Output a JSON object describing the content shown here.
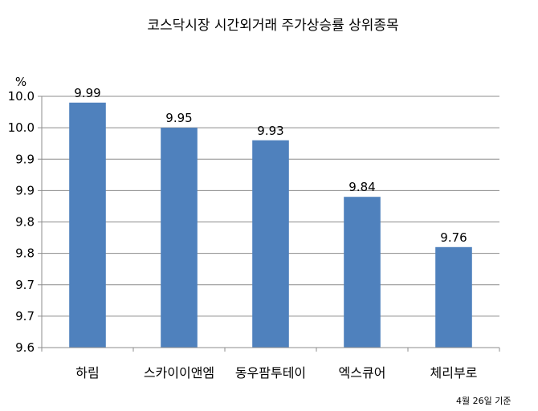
{
  "chart_data": {
    "type": "bar",
    "title": "코스닥시장 시간외거래  주가상승률 상위종목",
    "ylabel": "%",
    "categories": [
      "하림",
      "스카이이앤엠",
      "동우팜투테이",
      "엑스큐어",
      "체리부로"
    ],
    "values": [
      9.99,
      9.95,
      9.93,
      9.84,
      9.76
    ],
    "data_labels": [
      "9.99",
      "9.95",
      "9.93",
      "9.84",
      "9.76"
    ],
    "y_tick_labels": [
      "9.6",
      "9.7",
      "9.7",
      "9.8",
      "9.8",
      "9.9",
      "9.9",
      "10.0",
      "10.0"
    ],
    "ylim": [
      9.6,
      10.0
    ],
    "grid": true,
    "bar_color": "#4f81bd",
    "note": "4월 26일 기준"
  }
}
